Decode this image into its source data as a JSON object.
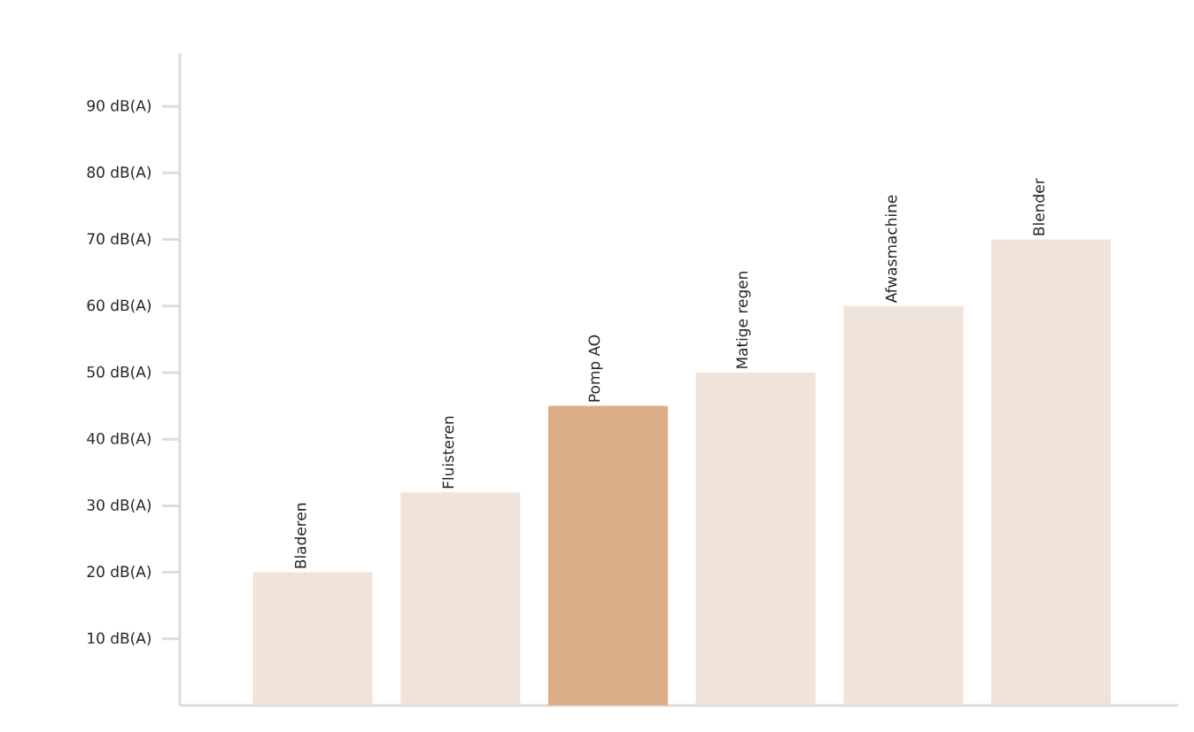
{
  "chart_data": {
    "type": "bar",
    "categories": [
      "Bladeren",
      "Fluisteren",
      "Pomp AO",
      "Matige regen",
      "Afwasmachine",
      "Blender"
    ],
    "values": [
      20,
      32,
      45,
      50,
      60,
      70
    ],
    "colors": [
      "#f0e3da",
      "#f0e3da",
      "#dcae87",
      "#f0e3da",
      "#f0e3da",
      "#f0e3da"
    ],
    "ylim": [
      0,
      98
    ],
    "yticks": [
      {
        "value": 10,
        "label": "10 dB(A)"
      },
      {
        "value": 20,
        "label": "20 dB(A)"
      },
      {
        "value": 30,
        "label": "30 dB(A)"
      },
      {
        "value": 40,
        "label": "40 dB(A)"
      },
      {
        "value": 50,
        "label": "50 dB(A)"
      },
      {
        "value": 60,
        "label": "60 dB(A)"
      },
      {
        "value": 70,
        "label": "70 dB(A)"
      },
      {
        "value": 80,
        "label": "80 dB(A)"
      },
      {
        "value": 90,
        "label": "90 dB(A)"
      }
    ]
  }
}
